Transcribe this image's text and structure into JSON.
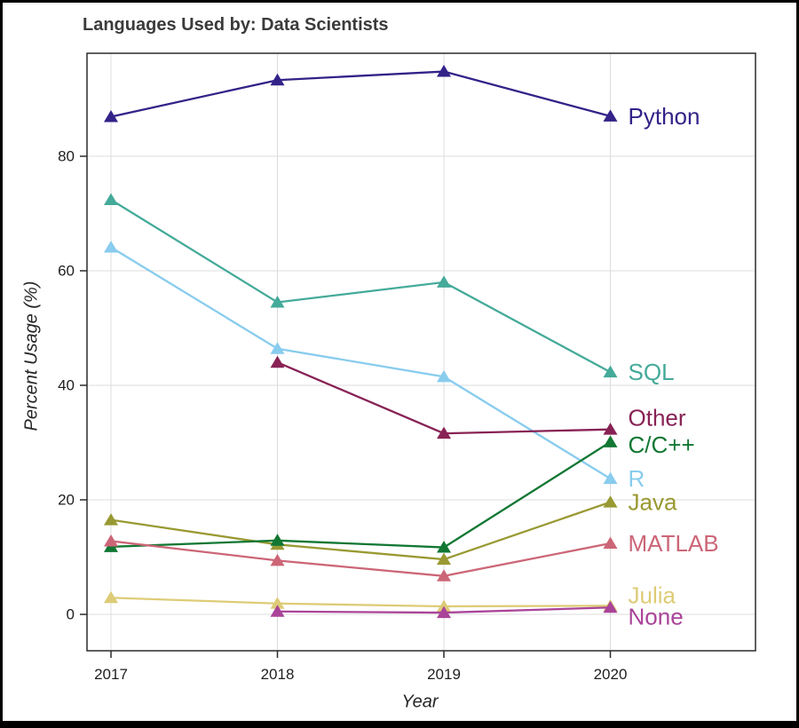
{
  "chart_data": {
    "type": "line",
    "title": "Languages Used by: Data Scientists",
    "xlabel": "Year",
    "ylabel": "Percent Usage (%)",
    "x": [
      2017,
      2018,
      2019,
      2020
    ],
    "x_ticks": [
      "2017",
      "2018",
      "2019",
      "2020"
    ],
    "y_ticks": [
      0,
      20,
      40,
      60,
      80
    ],
    "ylim": [
      -6,
      98
    ],
    "grid": true,
    "marker": "triangle-up",
    "legend_position": "end-of-line-labels",
    "series": [
      {
        "name": "SQL",
        "color": "#44AA99",
        "values": [
          72.4,
          54.5,
          58.0,
          42.3
        ],
        "label_dy": 0
      },
      {
        "name": "R",
        "color": "#88CCEE",
        "values": [
          64.1,
          46.4,
          41.5,
          23.7
        ],
        "label_dy": 0
      },
      {
        "name": "Other",
        "color": "#882255",
        "values": [
          null,
          44.0,
          31.6,
          32.3
        ],
        "label_dy": -13
      },
      {
        "name": "Java",
        "color": "#999933",
        "values": [
          16.5,
          12.2,
          9.6,
          19.6
        ],
        "label_dy": 0
      },
      {
        "name": "C/C++",
        "color": "#117733",
        "values": [
          11.8,
          12.9,
          11.7,
          30.1
        ],
        "label_dy": 3
      },
      {
        "name": "MATLAB",
        "color": "#CC6677",
        "values": [
          12.8,
          9.4,
          6.7,
          12.4
        ],
        "label_dy": 0
      },
      {
        "name": "Julia",
        "color": "#DDCC77",
        "values": [
          2.9,
          1.9,
          1.4,
          1.5
        ],
        "label_dy": -12
      },
      {
        "name": "None",
        "color": "#AA4499",
        "values": [
          null,
          0.5,
          0.3,
          1.2
        ],
        "label_dy": 10
      },
      {
        "name": "Python",
        "color": "#332288",
        "values": [
          86.9,
          93.3,
          94.8,
          87.0
        ],
        "label_dy": 0
      }
    ]
  }
}
